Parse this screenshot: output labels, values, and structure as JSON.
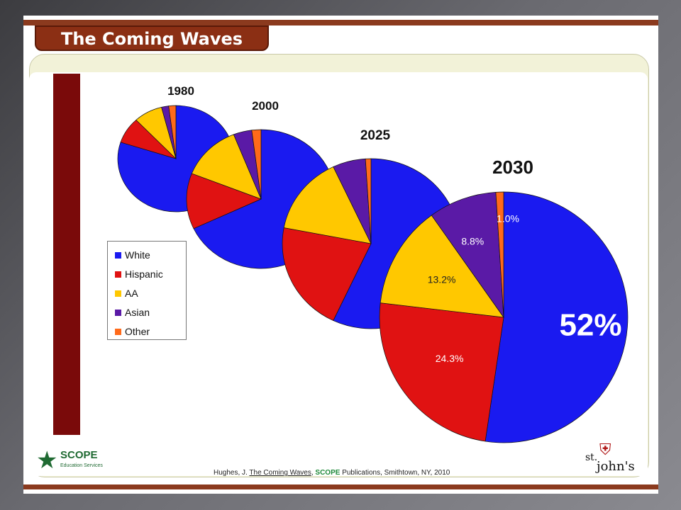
{
  "title": "The Coming Waves",
  "colors": {
    "White": "#1a1af0",
    "Hispanic": "#e01212",
    "AA": "#ffc800",
    "Asian": "#5a1aa6",
    "Other": "#ff6a1a",
    "accent_brown": "#8b2f14",
    "side_bar": "#7a0a0a"
  },
  "legend": {
    "items": [
      "White",
      "Hispanic",
      "AA",
      "Asian",
      "Other"
    ]
  },
  "chart_data": {
    "type": "pie",
    "categories": [
      "White",
      "Hispanic",
      "AA",
      "Asian",
      "Other"
    ],
    "charts": [
      {
        "year": "1980",
        "values": [
          80,
          8,
          8,
          2,
          2
        ]
      },
      {
        "year": "2000",
        "values": [
          68,
          13,
          13,
          4,
          2
        ]
      },
      {
        "year": "2025",
        "values": [
          57,
          21,
          15,
          6,
          1
        ]
      },
      {
        "year": "2030",
        "values": [
          52,
          24.3,
          13.2,
          8.8,
          1.0
        ],
        "labels": [
          "52%",
          "24.3%",
          "13.2%",
          "8.8%",
          "1.0%"
        ]
      }
    ]
  },
  "logos": {
    "scope_name": "SCOPE",
    "scope_subtitle": "Education Services",
    "st": "st.",
    "johns": "john's"
  },
  "citation": {
    "prefix": "Hughes, J. ",
    "title": "The Coming Waves",
    "sep": ", ",
    "publisher": "SCOPE",
    "suffix": " Publications, Smithtown, NY, 2010"
  }
}
